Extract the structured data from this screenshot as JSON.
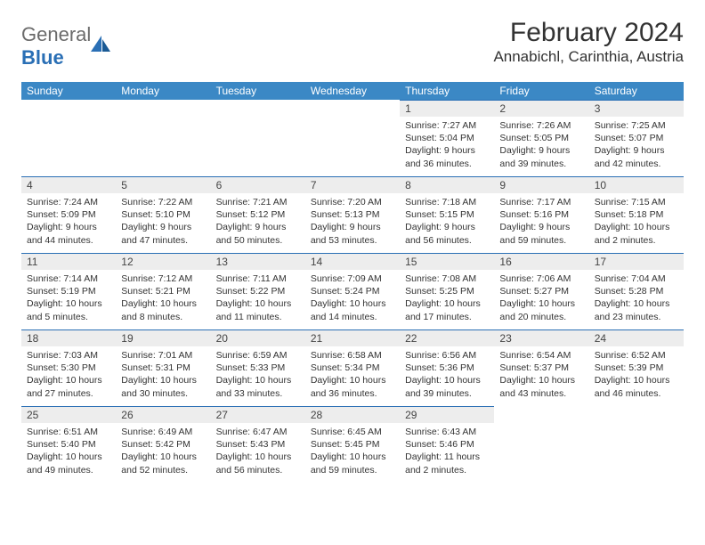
{
  "logo": {
    "word1": "General",
    "word2": "Blue"
  },
  "title": "February 2024",
  "location": "Annabichl, Carinthia, Austria",
  "colors": {
    "header_bg": "#3b88c5",
    "header_text": "#ffffff",
    "date_bar_bg": "#ededed",
    "date_bar_border": "#2a6fb5",
    "body_text": "#333333",
    "logo_gray": "#6b6b6b",
    "logo_blue": "#2a6fb5"
  },
  "week_days": [
    "Sunday",
    "Monday",
    "Tuesday",
    "Wednesday",
    "Thursday",
    "Friday",
    "Saturday"
  ],
  "weeks": [
    [
      null,
      null,
      null,
      null,
      {
        "d": "1",
        "sr": "Sunrise: 7:27 AM",
        "ss": "Sunset: 5:04 PM",
        "dl": "Daylight: 9 hours and 36 minutes."
      },
      {
        "d": "2",
        "sr": "Sunrise: 7:26 AM",
        "ss": "Sunset: 5:05 PM",
        "dl": "Daylight: 9 hours and 39 minutes."
      },
      {
        "d": "3",
        "sr": "Sunrise: 7:25 AM",
        "ss": "Sunset: 5:07 PM",
        "dl": "Daylight: 9 hours and 42 minutes."
      }
    ],
    [
      {
        "d": "4",
        "sr": "Sunrise: 7:24 AM",
        "ss": "Sunset: 5:09 PM",
        "dl": "Daylight: 9 hours and 44 minutes."
      },
      {
        "d": "5",
        "sr": "Sunrise: 7:22 AM",
        "ss": "Sunset: 5:10 PM",
        "dl": "Daylight: 9 hours and 47 minutes."
      },
      {
        "d": "6",
        "sr": "Sunrise: 7:21 AM",
        "ss": "Sunset: 5:12 PM",
        "dl": "Daylight: 9 hours and 50 minutes."
      },
      {
        "d": "7",
        "sr": "Sunrise: 7:20 AM",
        "ss": "Sunset: 5:13 PM",
        "dl": "Daylight: 9 hours and 53 minutes."
      },
      {
        "d": "8",
        "sr": "Sunrise: 7:18 AM",
        "ss": "Sunset: 5:15 PM",
        "dl": "Daylight: 9 hours and 56 minutes."
      },
      {
        "d": "9",
        "sr": "Sunrise: 7:17 AM",
        "ss": "Sunset: 5:16 PM",
        "dl": "Daylight: 9 hours and 59 minutes."
      },
      {
        "d": "10",
        "sr": "Sunrise: 7:15 AM",
        "ss": "Sunset: 5:18 PM",
        "dl": "Daylight: 10 hours and 2 minutes."
      }
    ],
    [
      {
        "d": "11",
        "sr": "Sunrise: 7:14 AM",
        "ss": "Sunset: 5:19 PM",
        "dl": "Daylight: 10 hours and 5 minutes."
      },
      {
        "d": "12",
        "sr": "Sunrise: 7:12 AM",
        "ss": "Sunset: 5:21 PM",
        "dl": "Daylight: 10 hours and 8 minutes."
      },
      {
        "d": "13",
        "sr": "Sunrise: 7:11 AM",
        "ss": "Sunset: 5:22 PM",
        "dl": "Daylight: 10 hours and 11 minutes."
      },
      {
        "d": "14",
        "sr": "Sunrise: 7:09 AM",
        "ss": "Sunset: 5:24 PM",
        "dl": "Daylight: 10 hours and 14 minutes."
      },
      {
        "d": "15",
        "sr": "Sunrise: 7:08 AM",
        "ss": "Sunset: 5:25 PM",
        "dl": "Daylight: 10 hours and 17 minutes."
      },
      {
        "d": "16",
        "sr": "Sunrise: 7:06 AM",
        "ss": "Sunset: 5:27 PM",
        "dl": "Daylight: 10 hours and 20 minutes."
      },
      {
        "d": "17",
        "sr": "Sunrise: 7:04 AM",
        "ss": "Sunset: 5:28 PM",
        "dl": "Daylight: 10 hours and 23 minutes."
      }
    ],
    [
      {
        "d": "18",
        "sr": "Sunrise: 7:03 AM",
        "ss": "Sunset: 5:30 PM",
        "dl": "Daylight: 10 hours and 27 minutes."
      },
      {
        "d": "19",
        "sr": "Sunrise: 7:01 AM",
        "ss": "Sunset: 5:31 PM",
        "dl": "Daylight: 10 hours and 30 minutes."
      },
      {
        "d": "20",
        "sr": "Sunrise: 6:59 AM",
        "ss": "Sunset: 5:33 PM",
        "dl": "Daylight: 10 hours and 33 minutes."
      },
      {
        "d": "21",
        "sr": "Sunrise: 6:58 AM",
        "ss": "Sunset: 5:34 PM",
        "dl": "Daylight: 10 hours and 36 minutes."
      },
      {
        "d": "22",
        "sr": "Sunrise: 6:56 AM",
        "ss": "Sunset: 5:36 PM",
        "dl": "Daylight: 10 hours and 39 minutes."
      },
      {
        "d": "23",
        "sr": "Sunrise: 6:54 AM",
        "ss": "Sunset: 5:37 PM",
        "dl": "Daylight: 10 hours and 43 minutes."
      },
      {
        "d": "24",
        "sr": "Sunrise: 6:52 AM",
        "ss": "Sunset: 5:39 PM",
        "dl": "Daylight: 10 hours and 46 minutes."
      }
    ],
    [
      {
        "d": "25",
        "sr": "Sunrise: 6:51 AM",
        "ss": "Sunset: 5:40 PM",
        "dl": "Daylight: 10 hours and 49 minutes."
      },
      {
        "d": "26",
        "sr": "Sunrise: 6:49 AM",
        "ss": "Sunset: 5:42 PM",
        "dl": "Daylight: 10 hours and 52 minutes."
      },
      {
        "d": "27",
        "sr": "Sunrise: 6:47 AM",
        "ss": "Sunset: 5:43 PM",
        "dl": "Daylight: 10 hours and 56 minutes."
      },
      {
        "d": "28",
        "sr": "Sunrise: 6:45 AM",
        "ss": "Sunset: 5:45 PM",
        "dl": "Daylight: 10 hours and 59 minutes."
      },
      {
        "d": "29",
        "sr": "Sunrise: 6:43 AM",
        "ss": "Sunset: 5:46 PM",
        "dl": "Daylight: 11 hours and 2 minutes."
      },
      null,
      null
    ]
  ]
}
